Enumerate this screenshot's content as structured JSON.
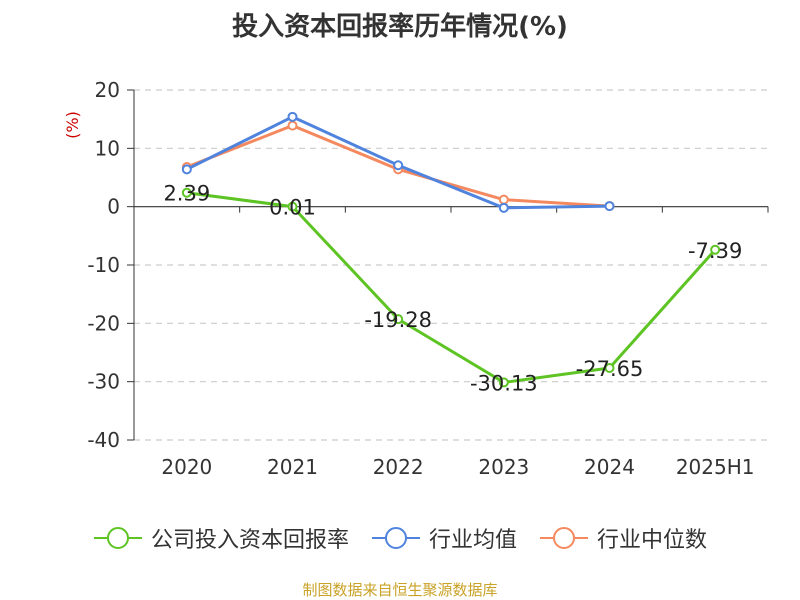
{
  "chart_data": {
    "type": "line",
    "title": "投入资本回报率历年情况(%)",
    "ylabel": "(%)",
    "categories": [
      "2020",
      "2021",
      "2022",
      "2023",
      "2024",
      "2025H1"
    ],
    "ylim": [
      -40,
      20
    ],
    "yticks": [
      20,
      10,
      0,
      -10,
      -20,
      -30,
      -40
    ],
    "grid": true,
    "legend_position": "bottom",
    "series": [
      {
        "name": "公司投入资本回报率",
        "color": "#5dc424",
        "values": [
          2.39,
          0.01,
          -19.28,
          -30.13,
          -27.65,
          -7.39
        ],
        "labels": [
          "2.39",
          "0.01",
          "-19.28",
          "-30.13",
          "-27.65",
          "-7.39"
        ],
        "show_labels": true
      },
      {
        "name": "行业均值",
        "color": "#4f83dd",
        "values": [
          6.4,
          15.4,
          7.1,
          -0.2,
          0.1,
          null
        ],
        "show_labels": false
      },
      {
        "name": "行业中位数",
        "color": "#f4895f",
        "values": [
          6.8,
          13.9,
          6.4,
          1.2,
          0.1,
          null
        ],
        "show_labels": false
      }
    ]
  },
  "source": "制图数据来自恒生聚源数据库"
}
